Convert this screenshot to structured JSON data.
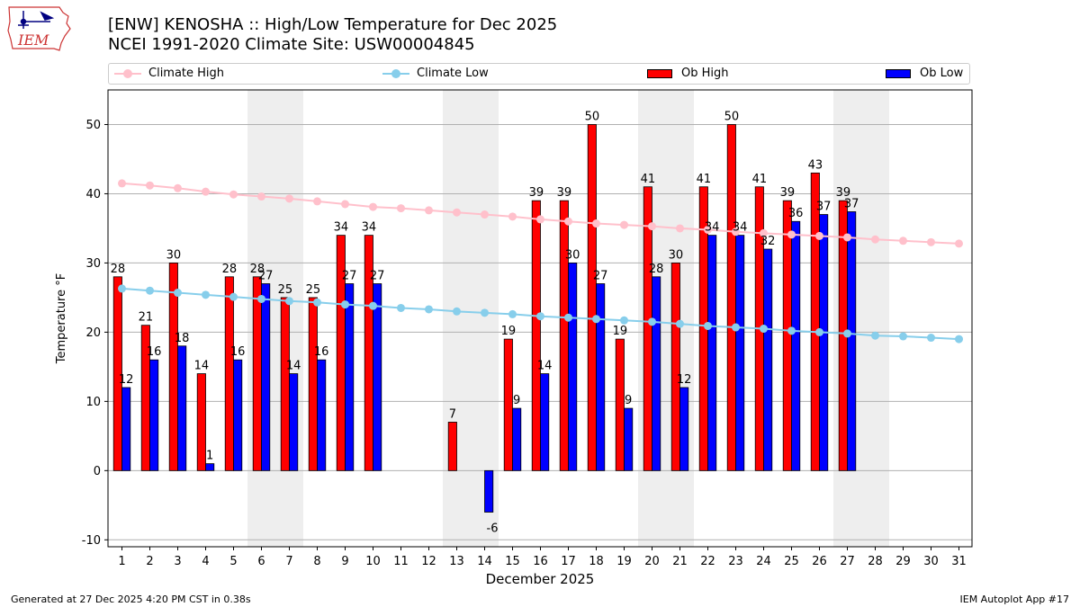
{
  "header": {
    "logo_text": "IEM",
    "title_line1": "[ENW] KENOSHA :: High/Low Temperature for Dec 2025",
    "title_line2": "NCEI 1991-2020 Climate Site: USW00004845"
  },
  "legend": {
    "climate_high": "Climate High",
    "climate_low": "Climate Low",
    "ob_high": "Ob High",
    "ob_low": "Ob Low"
  },
  "footer": {
    "generated": "Generated at 27 Dec 2025 4:20 PM CST in 0.38s",
    "app": "IEM Autoplot App #17"
  },
  "chart_data": {
    "type": "bar",
    "title": "[ENW] KENOSHA :: High/Low Temperature for Dec 2025",
    "subtitle": "NCEI 1991-2020 Climate Site: USW00004845",
    "xlabel": "December 2025",
    "ylabel": "Temperature °F",
    "ylim": [
      -11,
      55
    ],
    "yticks": [
      -10,
      0,
      10,
      20,
      30,
      40,
      50
    ],
    "grid": true,
    "legend_position": "top",
    "days": [
      1,
      2,
      3,
      4,
      5,
      6,
      7,
      8,
      9,
      10,
      11,
      12,
      13,
      14,
      15,
      16,
      17,
      18,
      19,
      20,
      21,
      22,
      23,
      24,
      25,
      26,
      27,
      28,
      29,
      30,
      31
    ],
    "weekend_shading": [
      [
        6,
        7
      ],
      [
        13,
        14
      ],
      [
        20,
        21
      ],
      [
        27,
        28
      ]
    ],
    "series": [
      {
        "name": "Ob High",
        "kind": "bar",
        "color": "#ff0000",
        "values": [
          28,
          21,
          30,
          14,
          28,
          28,
          25,
          25,
          34,
          34,
          null,
          null,
          7,
          null,
          19,
          39,
          39,
          50,
          19,
          41,
          30,
          41,
          50,
          41,
          39,
          43,
          39,
          null,
          null,
          null,
          null
        ],
        "labels": [
          "28",
          "21",
          "30",
          "14",
          "28",
          "28",
          "25",
          "25",
          "34",
          "34",
          null,
          null,
          "7",
          null,
          "19",
          "39",
          "39",
          "50",
          "19",
          "41",
          "30",
          "41",
          "50",
          "41",
          "39",
          "43",
          "39",
          null,
          null,
          null,
          null
        ]
      },
      {
        "name": "Ob Low",
        "kind": "bar",
        "color": "#0000ff",
        "values": [
          12,
          16,
          18,
          1,
          16,
          27,
          14,
          16,
          27,
          27,
          null,
          null,
          null,
          -6,
          9,
          14,
          30,
          27,
          9,
          28,
          12,
          34,
          34,
          32,
          36,
          37,
          37.4,
          null,
          null,
          null,
          null
        ],
        "labels": [
          "12",
          "16",
          "18",
          "1",
          "16",
          "27",
          "14",
          "16",
          "27",
          "27",
          null,
          null,
          null,
          "-6",
          "9",
          "14",
          "30",
          "27",
          "9",
          "28",
          "12",
          "34",
          "34",
          "32",
          "36",
          "37",
          "37",
          null,
          null,
          null,
          null
        ]
      },
      {
        "name": "Climate High",
        "kind": "line",
        "color": "#ffc0cb",
        "values": [
          41.5,
          41.2,
          40.8,
          40.3,
          39.9,
          39.6,
          39.3,
          38.9,
          38.5,
          38.1,
          37.9,
          37.6,
          37.3,
          37.0,
          36.7,
          36.3,
          36.0,
          35.7,
          35.5,
          35.3,
          35.0,
          34.8,
          34.5,
          34.3,
          34.1,
          33.9,
          33.7,
          33.4,
          33.2,
          33.0,
          32.8
        ]
      },
      {
        "name": "Climate Low",
        "kind": "line",
        "color": "#87ceeb",
        "values": [
          26.3,
          26.0,
          25.7,
          25.4,
          25.1,
          24.8,
          24.5,
          24.3,
          24.0,
          23.8,
          23.5,
          23.3,
          23.0,
          22.8,
          22.6,
          22.3,
          22.1,
          21.9,
          21.7,
          21.5,
          21.2,
          20.9,
          20.7,
          20.5,
          20.2,
          20.0,
          19.8,
          19.5,
          19.4,
          19.2,
          19.0
        ]
      }
    ]
  }
}
